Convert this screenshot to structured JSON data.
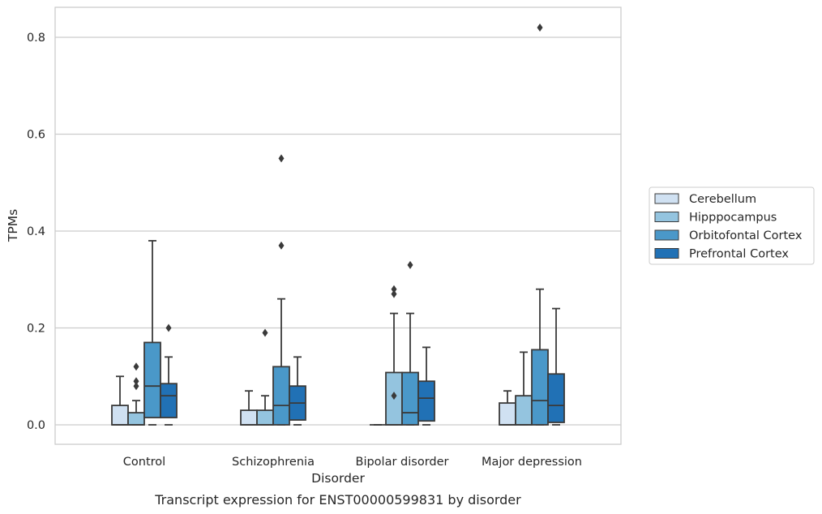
{
  "chart_data": {
    "type": "box",
    "xlabel": "Disorder",
    "ylabel": "TPMs",
    "caption": "Transcript expression for ENST00000599831 by disorder",
    "ylim": [
      -0.04,
      0.862
    ],
    "yticks": [
      "0.0",
      "0.2",
      "0.4",
      "0.6",
      "0.8"
    ],
    "ytick_values": [
      0.0,
      0.2,
      0.4,
      0.6,
      0.8
    ],
    "grid": "horizontal",
    "legend_position": "center-right outside",
    "categories": [
      "Control",
      "Schizophrenia",
      "Bipolar disorder",
      "Major depression"
    ],
    "series": [
      {
        "name": "Cerebellum",
        "color": "#d0e1f2",
        "boxes": [
          {
            "whislo": 0.0,
            "q1": 0.0,
            "med": 0.0,
            "q3": 0.04,
            "whishi": 0.1,
            "fliers": []
          },
          {
            "whislo": 0.0,
            "q1": 0.0,
            "med": 0.0,
            "q3": 0.03,
            "whishi": 0.07,
            "fliers": []
          },
          {
            "whislo": 0.0,
            "q1": 0.0,
            "med": 0.0,
            "q3": 0.0,
            "whishi": 0.0,
            "fliers": []
          },
          {
            "whislo": 0.0,
            "q1": 0.0,
            "med": 0.0,
            "q3": 0.045,
            "whishi": 0.07,
            "fliers": []
          }
        ]
      },
      {
        "name": "Hipppocampus",
        "color": "#94c4df",
        "boxes": [
          {
            "whislo": 0.0,
            "q1": 0.0,
            "med": 0.0,
            "q3": 0.025,
            "whishi": 0.05,
            "fliers": [
              0.08,
              0.09,
              0.12
            ]
          },
          {
            "whislo": 0.0,
            "q1": 0.0,
            "med": 0.0,
            "q3": 0.03,
            "whishi": 0.06,
            "fliers": [
              0.19
            ]
          },
          {
            "whislo": 0.0,
            "q1": 0.0,
            "med": 0.0,
            "q3": 0.108,
            "whishi": 0.23,
            "fliers": [
              0.06,
              0.27,
              0.28
            ]
          },
          {
            "whislo": 0.0,
            "q1": 0.0,
            "med": 0.0,
            "q3": 0.06,
            "whishi": 0.15,
            "fliers": []
          }
        ]
      },
      {
        "name": "Orbitofontal Cortex",
        "color": "#4a98c9",
        "boxes": [
          {
            "whislo": 0.0,
            "q1": 0.015,
            "med": 0.08,
            "q3": 0.17,
            "whishi": 0.38,
            "fliers": []
          },
          {
            "whislo": 0.0,
            "q1": 0.0,
            "med": 0.04,
            "q3": 0.12,
            "whishi": 0.26,
            "fliers": [
              0.37,
              0.55
            ]
          },
          {
            "whislo": 0.0,
            "q1": 0.0,
            "med": 0.025,
            "q3": 0.108,
            "whishi": 0.23,
            "fliers": [
              0.33
            ]
          },
          {
            "whislo": 0.0,
            "q1": 0.0,
            "med": 0.05,
            "q3": 0.155,
            "whishi": 0.28,
            "fliers": [
              0.82
            ]
          }
        ]
      },
      {
        "name": "Prefrontal Cortex",
        "color": "#2171b5",
        "boxes": [
          {
            "whislo": 0.0,
            "q1": 0.015,
            "med": 0.06,
            "q3": 0.085,
            "whishi": 0.14,
            "fliers": [
              0.2
            ]
          },
          {
            "whislo": 0.0,
            "q1": 0.01,
            "med": 0.045,
            "q3": 0.08,
            "whishi": 0.14,
            "fliers": []
          },
          {
            "whislo": 0.0,
            "q1": 0.008,
            "med": 0.055,
            "q3": 0.09,
            "whishi": 0.16,
            "fliers": []
          },
          {
            "whislo": 0.0,
            "q1": 0.005,
            "med": 0.04,
            "q3": 0.105,
            "whishi": 0.24,
            "fliers": []
          }
        ]
      }
    ]
  }
}
